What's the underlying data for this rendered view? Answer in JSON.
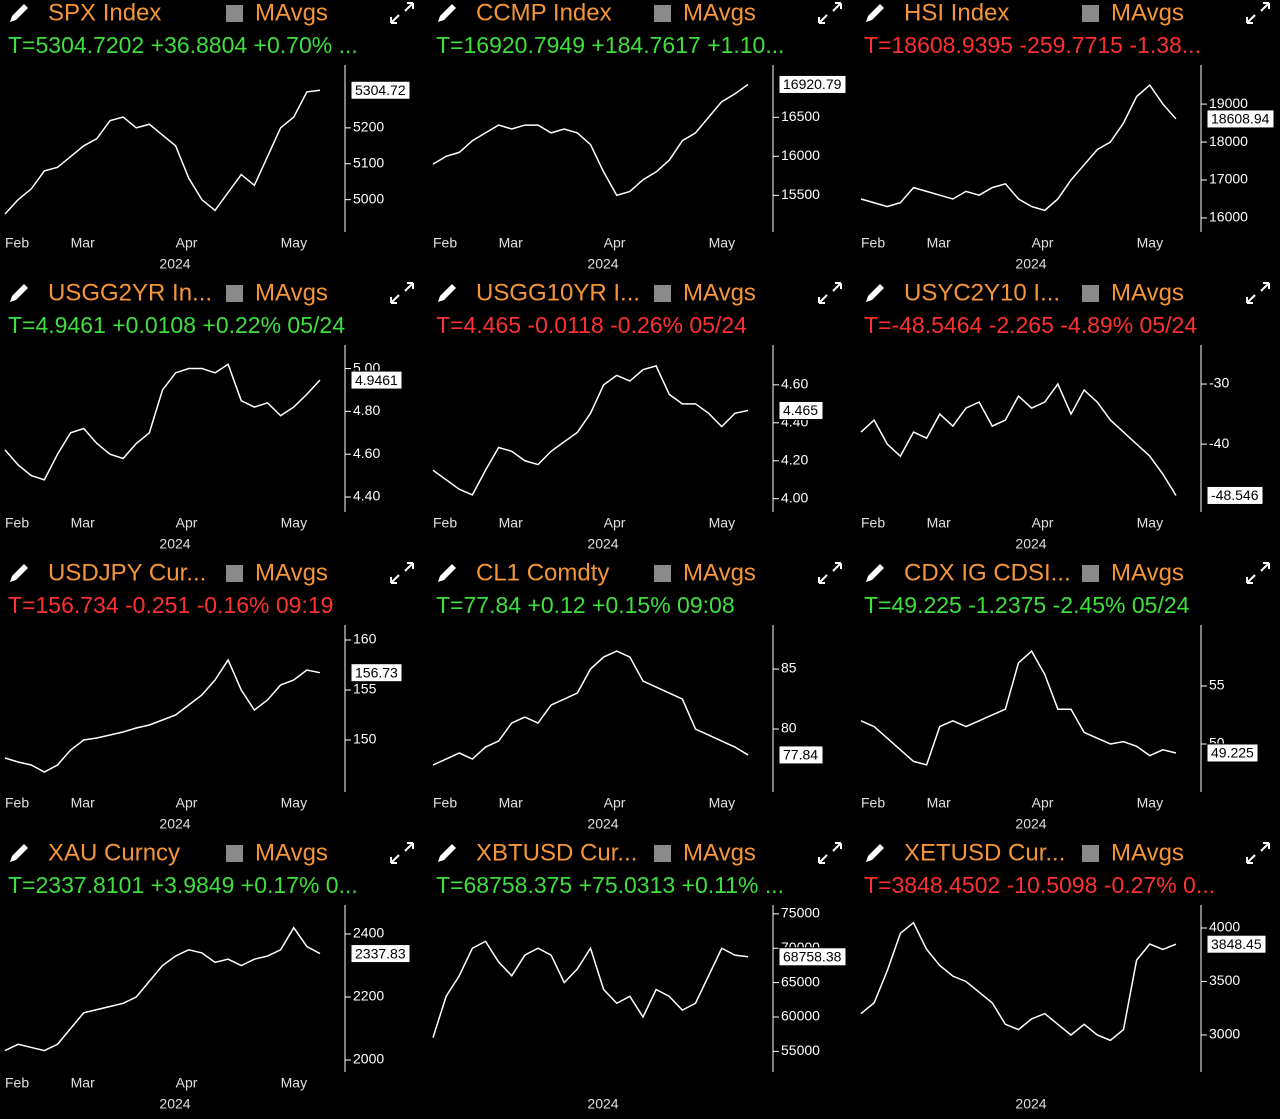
{
  "chart_data": [
    {
      "type": "line",
      "title": "SPX Index",
      "legend_label": "MAvgs",
      "subtitle": "T=5304.7202 +36.8804 +0.70% ...",
      "subtitle_color": "#3ee03e",
      "color": "#ffffff",
      "categories": [
        "Feb",
        null,
        null,
        null,
        null,
        "Mar",
        null,
        null,
        null,
        null,
        null,
        null,
        null,
        "Apr",
        null,
        null,
        null,
        null,
        null,
        null,
        null,
        "May",
        null,
        null,
        null
      ],
      "year_label": "2024",
      "values": [
        4960,
        5000,
        5030,
        5080,
        5090,
        5120,
        5150,
        5170,
        5220,
        5230,
        5200,
        5210,
        5180,
        5150,
        5060,
        5000,
        4970,
        5020,
        5070,
        5040,
        5120,
        5200,
        5230,
        5300,
        5304.72
      ],
      "last_value": 5304.72,
      "ylim": [
        4910,
        5375
      ],
      "yticks": [
        5000,
        5100,
        5200
      ]
    },
    {
      "type": "line",
      "title": "CCMP Index",
      "legend_label": "MAvgs",
      "subtitle": "T=16920.7949 +184.7617 +1.10...",
      "subtitle_color": "#3ee03e",
      "color": "#ffffff",
      "categories": [
        "Feb",
        null,
        null,
        null,
        null,
        "Mar",
        null,
        null,
        null,
        null,
        null,
        null,
        null,
        "Apr",
        null,
        null,
        null,
        null,
        null,
        null,
        null,
        "May",
        null,
        null,
        null
      ],
      "year_label": "2024",
      "values": [
        15900,
        16000,
        16050,
        16200,
        16300,
        16400,
        16350,
        16400,
        16400,
        16300,
        16350,
        16300,
        16150,
        15800,
        15500,
        15550,
        15700,
        15800,
        15950,
        16200,
        16300,
        16500,
        16700,
        16800,
        16920.79
      ],
      "last_value": 16920.79,
      "ylim": [
        15030,
        17170
      ],
      "yticks": [
        15500,
        16000,
        16500
      ]
    },
    {
      "type": "line",
      "title": "HSI Index",
      "legend_label": "MAvgs",
      "subtitle": "T=18608.9395 -259.7715 -1.38...",
      "subtitle_color": "#ff3030",
      "color": "#ffffff",
      "categories": [
        "Feb",
        null,
        null,
        null,
        null,
        "Mar",
        null,
        null,
        null,
        null,
        null,
        null,
        null,
        "Apr",
        null,
        null,
        null,
        null,
        null,
        null,
        null,
        "May",
        null,
        null,
        null
      ],
      "year_label": "2024",
      "values": [
        16500,
        16400,
        16300,
        16400,
        16800,
        16700,
        16600,
        16500,
        16700,
        16600,
        16800,
        16900,
        16500,
        16300,
        16200,
        16500,
        17000,
        17400,
        17800,
        18000,
        18500,
        19200,
        19500,
        19000,
        18608.94
      ],
      "last_value": 18608.94,
      "ylim": [
        15630,
        20030
      ],
      "yticks": [
        16000,
        17000,
        18000,
        19000
      ]
    },
    {
      "type": "line",
      "title": "USGG2YR In...",
      "legend_label": "MAvgs",
      "subtitle": "T=4.9461 +0.0108 +0.22% 05/24",
      "subtitle_color": "#3ee03e",
      "color": "#ffffff",
      "categories": [
        "Feb",
        null,
        null,
        null,
        null,
        "Mar",
        null,
        null,
        null,
        null,
        null,
        null,
        null,
        "Apr",
        null,
        null,
        null,
        null,
        null,
        null,
        null,
        "May",
        null,
        null,
        null
      ],
      "year_label": "2024",
      "values": [
        4.62,
        4.55,
        4.5,
        4.48,
        4.6,
        4.7,
        4.72,
        4.65,
        4.6,
        4.58,
        4.65,
        4.7,
        4.9,
        4.98,
        5.0,
        5.0,
        4.98,
        5.02,
        4.85,
        4.82,
        4.84,
        4.78,
        4.82,
        4.88,
        4.9461
      ],
      "last_value": 4.9461,
      "ylim": [
        4.33,
        5.11
      ],
      "yticks": [
        {
          "value": 4.4,
          "label": "4.40"
        },
        {
          "value": 4.6,
          "label": "4.60"
        },
        {
          "value": 4.8,
          "label": "4.80"
        },
        {
          "value": 5.0,
          "label": "5.00"
        }
      ]
    },
    {
      "type": "line",
      "title": "USGG10YR I...",
      "legend_label": "MAvgs",
      "subtitle": "T=4.465 -0.0118 -0.26% 05/24",
      "subtitle_color": "#ff3030",
      "color": "#ffffff",
      "categories": [
        "Feb",
        null,
        null,
        null,
        null,
        "Mar",
        null,
        null,
        null,
        null,
        null,
        null,
        null,
        "Apr",
        null,
        null,
        null,
        null,
        null,
        null,
        null,
        "May",
        null,
        null,
        null
      ],
      "year_label": "2024",
      "values": [
        4.15,
        4.1,
        4.05,
        4.02,
        4.15,
        4.27,
        4.25,
        4.2,
        4.18,
        4.25,
        4.3,
        4.35,
        4.45,
        4.6,
        4.65,
        4.62,
        4.68,
        4.7,
        4.55,
        4.5,
        4.5,
        4.45,
        4.38,
        4.45,
        4.465
      ],
      "last_value": 4.465,
      "ylim": [
        3.93,
        4.81
      ],
      "yticks": [
        {
          "value": 4.0,
          "label": "4.00"
        },
        {
          "value": 4.2,
          "label": "4.20"
        },
        {
          "value": 4.4,
          "label": "4.40"
        },
        {
          "value": 4.6,
          "label": "4.60"
        }
      ]
    },
    {
      "type": "line",
      "title": "USYC2Y10 I...",
      "legend_label": "MAvgs",
      "subtitle": "T=-48.5464 -2.265 -4.89% 05/24",
      "subtitle_color": "#ff3030",
      "color": "#ffffff",
      "categories": [
        "Feb",
        null,
        null,
        null,
        null,
        "Mar",
        null,
        null,
        null,
        null,
        null,
        null,
        null,
        "Apr",
        null,
        null,
        null,
        null,
        null,
        null,
        null,
        "May",
        null,
        null,
        null
      ],
      "year_label": "2024",
      "values": [
        -38,
        -36,
        -40,
        -42,
        -38,
        -39,
        -35,
        -37,
        -34,
        -33,
        -37,
        -36,
        -32,
        -34,
        -33,
        -30,
        -35,
        -31,
        -33,
        -36,
        -38,
        -40,
        -42,
        -45,
        -48.546
      ],
      "last_value": -48.546,
      "ylim": [
        -51.3,
        -23.5
      ],
      "yticks": [
        -40,
        -30
      ]
    },
    {
      "type": "line",
      "title": "USDJPY Cur...",
      "legend_label": "MAvgs",
      "subtitle": "T=156.734 -0.251 -0.16% 09:19",
      "subtitle_color": "#ff3030",
      "color": "#ffffff",
      "categories": [
        "Feb",
        null,
        null,
        null,
        null,
        "Mar",
        null,
        null,
        null,
        null,
        null,
        null,
        null,
        "Apr",
        null,
        null,
        null,
        null,
        null,
        null,
        null,
        "May",
        null,
        null,
        null
      ],
      "year_label": "2024",
      "values": [
        148.2,
        147.8,
        147.5,
        146.8,
        147.5,
        149,
        150,
        150.2,
        150.5,
        150.8,
        151.2,
        151.5,
        152,
        152.5,
        153.5,
        154.5,
        156,
        158,
        155,
        153,
        154,
        155.5,
        156,
        157,
        156.73
      ],
      "last_value": 156.73,
      "ylim": [
        144.8,
        161.5
      ],
      "yticks": [
        150,
        155,
        160
      ]
    },
    {
      "type": "line",
      "title": "CL1 Comdty",
      "legend_label": "MAvgs",
      "subtitle": "T=77.84 +0.12 +0.15% 09:08",
      "subtitle_color": "#3ee03e",
      "color": "#ffffff",
      "categories": [
        "Feb",
        null,
        null,
        null,
        null,
        "Mar",
        null,
        null,
        null,
        null,
        null,
        null,
        null,
        "Apr",
        null,
        null,
        null,
        null,
        null,
        null,
        null,
        "May",
        null,
        null,
        null
      ],
      "year_label": "2024",
      "values": [
        77,
        77.5,
        78,
        77.5,
        78.5,
        79,
        80.5,
        81,
        80.5,
        82,
        82.5,
        83,
        85,
        86,
        86.5,
        86,
        84,
        83.5,
        83,
        82.5,
        80,
        79.5,
        79,
        78.5,
        77.84
      ],
      "last_value": 77.84,
      "ylim": [
        74.75,
        88.67
      ],
      "yticks": [
        80,
        85
      ]
    },
    {
      "type": "line",
      "title": "CDX IG CDSI...",
      "legend_label": "MAvgs",
      "subtitle": "T=49.225 -1.2375 -2.45% 05/24",
      "subtitle_color": "#3ee03e",
      "color": "#ffffff",
      "categories": [
        "Feb",
        null,
        null,
        null,
        null,
        "Mar",
        null,
        null,
        null,
        null,
        null,
        null,
        null,
        "Apr",
        null,
        null,
        null,
        null,
        null,
        null,
        null,
        "May",
        null,
        null,
        null
      ],
      "year_label": "2024",
      "values": [
        52,
        51.5,
        50.5,
        49.5,
        48.5,
        48.2,
        51.5,
        52,
        51.5,
        52,
        52.5,
        53,
        57,
        58,
        56,
        53,
        53,
        51,
        50.5,
        50,
        50.2,
        49.8,
        49,
        49.5,
        49.225
      ],
      "last_value": 49.225,
      "ylim": [
        45.86,
        60.26
      ],
      "yticks": [
        50,
        55
      ]
    },
    {
      "type": "line",
      "title": "XAU Curncy",
      "legend_label": "MAvgs",
      "subtitle": "T=2337.8101 +3.9849 +0.17% 0...",
      "subtitle_color": "#3ee03e",
      "color": "#ffffff",
      "categories": [
        "Feb",
        null,
        null,
        null,
        null,
        "Mar",
        null,
        null,
        null,
        null,
        null,
        null,
        null,
        "Apr",
        null,
        null,
        null,
        null,
        null,
        null,
        null,
        "May",
        null,
        null,
        null
      ],
      "year_label": "2024",
      "values": [
        2030,
        2050,
        2040,
        2030,
        2050,
        2100,
        2150,
        2160,
        2170,
        2180,
        2200,
        2250,
        2300,
        2330,
        2350,
        2340,
        2310,
        2320,
        2300,
        2320,
        2330,
        2350,
        2420,
        2360,
        2337.83
      ],
      "last_value": 2337.83,
      "ylim": [
        1962,
        2492
      ],
      "yticks": [
        2000,
        2200,
        2400
      ]
    },
    {
      "type": "line",
      "title": "XBTUSD Cur...",
      "legend_label": "MAvgs",
      "subtitle": "T=68758.375 +75.0313 +0.11% ...",
      "subtitle_color": "#3ee03e",
      "color": "#ffffff",
      "categories": [
        null,
        null,
        null,
        null,
        null,
        null,
        null,
        null,
        null,
        null,
        null,
        null,
        null,
        null,
        null,
        null,
        null,
        null,
        null,
        null,
        null,
        null,
        null,
        null,
        null
      ],
      "year_label": "2024",
      "values": [
        57000,
        63000,
        66000,
        70000,
        71000,
        68000,
        66000,
        69000,
        70000,
        69000,
        65000,
        67000,
        70000,
        64000,
        62000,
        63000,
        60000,
        64000,
        63000,
        61000,
        62000,
        66000,
        70000,
        69000,
        68758.38
      ],
      "last_value": 68758.38,
      "ylim": [
        52000,
        76290
      ],
      "yticks": [
        55000,
        60000,
        65000,
        70000,
        75000
      ]
    },
    {
      "type": "line",
      "title": "XETUSD Cur...",
      "legend_label": "MAvgs",
      "subtitle": "T=3848.4502 -10.5098 -0.27% 0...",
      "subtitle_color": "#ff3030",
      "color": "#ffffff",
      "categories": [
        null,
        null,
        null,
        null,
        null,
        null,
        null,
        null,
        null,
        null,
        null,
        null,
        null,
        null,
        null,
        null,
        null,
        null,
        null,
        null,
        null,
        null,
        null,
        null,
        null
      ],
      "year_label": "2024",
      "values": [
        3200,
        3300,
        3600,
        3950,
        4050,
        3800,
        3650,
        3550,
        3500,
        3400,
        3300,
        3100,
        3050,
        3150,
        3200,
        3100,
        3000,
        3100,
        3000,
        2950,
        3050,
        3700,
        3850,
        3800,
        3848.45
      ],
      "last_value": 3848.45,
      "ylim": [
        2654,
        4215
      ],
      "yticks": [
        3000,
        3500,
        4000
      ]
    }
  ]
}
